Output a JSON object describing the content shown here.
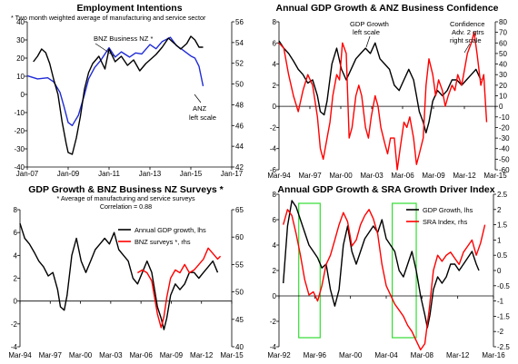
{
  "colors": {
    "black": "#000000",
    "red": "#ff0000",
    "blue": "#1f2bd6",
    "green": "#33dd33"
  },
  "chart_data": [
    {
      "type": "line",
      "title": "Employment Intentions",
      "notes": [
        "* Two month weighted average of manufacturing and service sector"
      ],
      "x_ticks": [
        "Jan-07",
        "Jan-09",
        "Jan-11",
        "Jan-13",
        "Jan-15",
        "Jan-17"
      ],
      "x_range": [
        2007,
        2017
      ],
      "ylim_left": [
        -40,
        40
      ],
      "ylim_right": [
        42,
        56
      ],
      "left_ticks": [
        "-40",
        "-30",
        "-20",
        "-10",
        "0",
        "10",
        "20",
        "30",
        "40"
      ],
      "right_ticks": [
        "42",
        "44",
        "46",
        "48",
        "50",
        "52",
        "54",
        "56"
      ],
      "annotations": [
        "BNZ Business NZ *",
        "ANZ",
        "left scale"
      ],
      "series": [
        {
          "name": "BNZ Business NZ *",
          "color": "blue",
          "axis": "right",
          "x": [
            2007.0,
            2007.5,
            2008.0,
            2008.3,
            2008.6,
            2008.8,
            2009.0,
            2009.2,
            2009.5,
            2009.8,
            2010.0,
            2010.3,
            2010.6,
            2011.0,
            2011.3,
            2011.6,
            2012.0,
            2012.3,
            2012.6,
            2013.0,
            2013.3,
            2013.6,
            2014.0,
            2014.3,
            2014.6,
            2015.0,
            2015.2,
            2015.4,
            2015.6
          ],
          "y": [
            50.8,
            50.5,
            50.6,
            50.2,
            49.2,
            47.8,
            46.3,
            46.0,
            47.0,
            49.0,
            50.5,
            51.6,
            52.3,
            53.5,
            52.6,
            53.1,
            52.6,
            53.0,
            52.9,
            53.8,
            53.4,
            54.1,
            54.5,
            53.7,
            53.3,
            52.7,
            52.5,
            51.7,
            49.8
          ]
        },
        {
          "name": "ANZ",
          "color": "black",
          "axis": "left",
          "x": [
            2007.3,
            2007.5,
            2007.7,
            2007.9,
            2008.1,
            2008.3,
            2008.5,
            2008.7,
            2008.9,
            2009.0,
            2009.2,
            2009.4,
            2009.6,
            2009.8,
            2010.0,
            2010.2,
            2010.5,
            2010.8,
            2011.0,
            2011.3,
            2011.6,
            2011.9,
            2012.2,
            2012.5,
            2012.8,
            2013.0,
            2013.3,
            2013.6,
            2013.9,
            2014.2,
            2014.5,
            2014.8,
            2015.0,
            2015.2,
            2015.4,
            2015.6
          ],
          "y": [
            18,
            21,
            25,
            23,
            17,
            8,
            0,
            -15,
            -27,
            -32,
            -33,
            -24,
            -12,
            3,
            12,
            17,
            21,
            14,
            25,
            18,
            21,
            16,
            19,
            13,
            17,
            19,
            22,
            26,
            31,
            28,
            25,
            28,
            32,
            30,
            26,
            26
          ]
        }
      ]
    },
    {
      "type": "line",
      "title": "Annual GDP Growth & ANZ Business Confidence",
      "x_ticks": [
        "Mar-94",
        "Mar-97",
        "Mar-00",
        "Mar-03",
        "Mar-06",
        "Mar-09",
        "Mar-12",
        "Mar-15"
      ],
      "x_range": [
        1994,
        2016.5
      ],
      "ylim_left": [
        -6,
        8
      ],
      "ylim_right": [
        -60,
        80
      ],
      "left_ticks": [
        "-6",
        "-4",
        "-2",
        "0",
        "2",
        "4",
        "6",
        "8"
      ],
      "right_ticks": [
        "-60",
        "-50",
        "-40",
        "-30",
        "-20",
        "-10",
        "0",
        "10",
        "20",
        "30",
        "40",
        "50",
        "60",
        "70",
        "80"
      ],
      "annotations": [
        "GDP Growth",
        "left scale",
        "Confidence",
        "Adv. 2 qtrs",
        "right scale"
      ],
      "series": [
        {
          "name": "GDP Growth",
          "color": "black",
          "axis": "left",
          "x": [
            1994.0,
            1994.5,
            1995.0,
            1995.5,
            1996.0,
            1996.5,
            1997.0,
            1997.5,
            1998.0,
            1998.3,
            1998.7,
            1999.0,
            1999.5,
            2000.0,
            2000.5,
            2001.0,
            2001.5,
            2002.0,
            2002.5,
            2003.0,
            2003.5,
            2004.0,
            2004.5,
            2005.0,
            2005.5,
            2006.0,
            2006.5,
            2007.0,
            2007.5,
            2008.0,
            2008.3,
            2008.6,
            2009.0,
            2009.3,
            2009.6,
            2010.0,
            2010.5,
            2011.0,
            2011.5,
            2012.0,
            2012.5,
            2013.0,
            2013.5,
            2014.0,
            2014.5,
            2015.0
          ],
          "y": [
            6.2,
            5.5,
            5.0,
            4.3,
            3.5,
            3.0,
            2.2,
            2.5,
            1.0,
            -0.5,
            -0.8,
            0.5,
            4.0,
            5.5,
            3.5,
            2.5,
            3.5,
            4.5,
            5.0,
            5.5,
            5.0,
            6.0,
            4.5,
            4.0,
            3.5,
            2.0,
            1.5,
            2.5,
            3.5,
            2.5,
            1.0,
            -0.5,
            -1.5,
            -2.5,
            -1.5,
            0.5,
            1.5,
            1.0,
            1.5,
            2.5,
            2.5,
            2.0,
            2.5,
            3.0,
            3.5,
            2.5
          ]
        },
        {
          "name": "Confidence Adv. 2 qtrs",
          "color": "red",
          "axis": "right",
          "x": [
            1994.0,
            1994.5,
            1995.0,
            1995.5,
            1996.0,
            1996.5,
            1997.0,
            1997.5,
            1998.0,
            1998.3,
            1998.6,
            1999.0,
            1999.3,
            1999.6,
            2000.0,
            2000.3,
            2000.6,
            2001.0,
            2001.3,
            2001.6,
            2002.0,
            2002.3,
            2002.6,
            2003.0,
            2003.3,
            2003.6,
            2004.0,
            2004.3,
            2004.6,
            2005.0,
            2005.3,
            2005.6,
            2006.0,
            2006.3,
            2006.6,
            2007.0,
            2007.3,
            2007.6,
            2008.0,
            2008.3,
            2008.6,
            2009.0,
            2009.3,
            2009.6,
            2010.0,
            2010.3,
            2010.6,
            2011.0,
            2011.3,
            2011.6,
            2012.0,
            2012.3,
            2012.6,
            2013.0,
            2013.3,
            2013.6,
            2014.0,
            2014.3,
            2014.6,
            2015.0,
            2015.3,
            2015.6
          ],
          "y": [
            60,
            55,
            30,
            10,
            -5,
            15,
            30,
            20,
            -10,
            -40,
            -50,
            -30,
            -15,
            10,
            30,
            25,
            60,
            50,
            -30,
            -20,
            10,
            20,
            10,
            -20,
            -30,
            -10,
            10,
            0,
            -20,
            -35,
            -45,
            -30,
            -30,
            -60,
            -40,
            -15,
            -20,
            -10,
            -30,
            -55,
            -45,
            -30,
            20,
            45,
            30,
            10,
            25,
            15,
            0,
            10,
            20,
            15,
            30,
            20,
            35,
            50,
            60,
            70,
            50,
            20,
            30,
            -15
          ]
        }
      ]
    },
    {
      "type": "line",
      "title": "GDP Growth & BNZ Business NZ Surveys *",
      "notes": [
        "* Average of manufacturing and service surveys",
        "Correlation = 0.88"
      ],
      "x_ticks": [
        "Mar-94",
        "Mar-97",
        "Mar-00",
        "Mar-03",
        "Mar-06",
        "Mar-09",
        "Mar-12",
        "Mar-15"
      ],
      "x_range": [
        1994,
        2016.5
      ],
      "ylim_left": [
        -4,
        8
      ],
      "ylim_right": [
        40,
        65
      ],
      "left_ticks": [
        "-4",
        "-2",
        "0",
        "2",
        "4",
        "6",
        "8"
      ],
      "right_ticks": [
        "40",
        "45",
        "50",
        "55",
        "60",
        "65"
      ],
      "legend": [
        "Annual GDP growth, lhs",
        "BNZ surveys *, rhs"
      ],
      "series": [
        {
          "name": "Annual GDP growth, lhs",
          "color": "black",
          "axis": "left",
          "x": [
            1994.0,
            1994.5,
            1995.0,
            1995.5,
            1996.0,
            1996.5,
            1997.0,
            1997.5,
            1998.0,
            1998.3,
            1998.7,
            1999.0,
            1999.5,
            2000.0,
            2000.5,
            2001.0,
            2001.5,
            2002.0,
            2002.5,
            2003.0,
            2003.5,
            2004.0,
            2004.5,
            2005.0,
            2005.5,
            2006.0,
            2006.5,
            2007.0,
            2007.5,
            2008.0,
            2008.3,
            2008.6,
            2009.0,
            2009.3,
            2009.6,
            2010.0,
            2010.5,
            2011.0,
            2011.5,
            2012.0,
            2012.5,
            2013.0,
            2013.5,
            2014.0,
            2014.5,
            2015.0
          ],
          "y": [
            6.8,
            5.5,
            5.0,
            4.3,
            3.5,
            3.0,
            2.2,
            2.5,
            1.0,
            -0.5,
            -0.8,
            0.5,
            4.0,
            5.5,
            3.5,
            2.5,
            3.5,
            4.5,
            5.0,
            5.5,
            5.0,
            6.0,
            4.5,
            4.0,
            3.5,
            2.0,
            1.5,
            2.5,
            3.5,
            2.5,
            1.0,
            -0.5,
            -1.5,
            -2.5,
            -1.5,
            0.5,
            1.5,
            1.0,
            1.5,
            2.5,
            2.5,
            2.0,
            2.5,
            3.0,
            3.5,
            2.5
          ]
        },
        {
          "name": "BNZ surveys *, rhs",
          "color": "red",
          "axis": "right",
          "x": [
            2006.5,
            2007.0,
            2007.5,
            2008.0,
            2008.3,
            2008.6,
            2009.0,
            2009.3,
            2009.6,
            2010.0,
            2010.5,
            2011.0,
            2011.5,
            2012.0,
            2012.5,
            2013.0,
            2013.5,
            2014.0,
            2014.5,
            2015.0,
            2015.3
          ],
          "y": [
            53.5,
            54.0,
            53.5,
            52.0,
            49.0,
            46.0,
            43.5,
            45.5,
            49.0,
            52.5,
            54.0,
            53.5,
            55.0,
            53.5,
            54.0,
            55.0,
            56.0,
            58.0,
            57.0,
            56.0,
            56.5
          ]
        }
      ]
    },
    {
      "type": "line",
      "title": "Annual GDP Growth & SRA Growth Driver Index",
      "x_ticks": [
        "Mar-92",
        "Mar-96",
        "Mar-00",
        "Mar-04",
        "Mar-08",
        "Mar-12",
        "Mar-16"
      ],
      "x_range": [
        1992,
        2017
      ],
      "ylim_left": [
        -4,
        8
      ],
      "ylim_right": [
        -2.5,
        2.5
      ],
      "left_ticks": [
        "-4",
        "-2",
        "0",
        "2",
        "4",
        "6",
        "8"
      ],
      "right_ticks": [
        "-2.5",
        "-2",
        "-1.5",
        "-1",
        "-0.5",
        "0",
        "0.5",
        "1",
        "1.5",
        "2",
        "2.5"
      ],
      "legend": [
        "GDP Growth, lhs",
        "SRA Index, rhs"
      ],
      "highlight_boxes": [
        {
          "x": [
            1994.3,
            1996.8
          ]
        },
        {
          "x": [
            2005.2,
            2008.0
          ]
        }
      ],
      "series": [
        {
          "name": "GDP Growth, lhs",
          "color": "black",
          "axis": "left",
          "x": [
            1992.5,
            1993.0,
            1993.5,
            1994.0,
            1994.5,
            1995.0,
            1995.5,
            1996.0,
            1996.5,
            1997.0,
            1997.5,
            1998.0,
            1998.5,
            1999.0,
            1999.5,
            2000.0,
            2000.5,
            2001.0,
            2001.5,
            2002.0,
            2002.5,
            2003.0,
            2003.5,
            2004.0,
            2004.5,
            2005.0,
            2005.5,
            2006.0,
            2006.5,
            2007.0,
            2007.5,
            2008.0,
            2008.5,
            2009.0,
            2009.3,
            2009.6,
            2010.0,
            2010.5,
            2011.0,
            2011.5,
            2012.0,
            2012.5,
            2013.0,
            2013.5,
            2014.0,
            2014.5,
            2015.0,
            2015.3
          ],
          "y": [
            1.0,
            5.5,
            7.5,
            7.0,
            6.0,
            5.0,
            4.0,
            3.5,
            3.0,
            2.2,
            2.5,
            0.5,
            -0.8,
            0.5,
            4.0,
            5.5,
            3.5,
            2.5,
            3.5,
            4.5,
            5.0,
            5.5,
            5.0,
            6.0,
            4.5,
            4.0,
            3.5,
            2.0,
            1.5,
            2.5,
            3.5,
            2.0,
            0.0,
            -1.5,
            -2.5,
            -1.5,
            0.5,
            1.5,
            1.0,
            1.5,
            2.5,
            2.5,
            2.0,
            2.5,
            3.0,
            3.5,
            2.5,
            2.0
          ]
        },
        {
          "name": "SRA Index, rhs",
          "color": "red",
          "axis": "right",
          "x": [
            1992.5,
            1993.0,
            1993.5,
            1994.0,
            1994.5,
            1995.0,
            1995.5,
            1996.0,
            1996.5,
            1997.0,
            1997.5,
            1998.0,
            1998.5,
            1999.0,
            1999.5,
            2000.0,
            2000.5,
            2001.0,
            2001.5,
            2002.0,
            2002.5,
            2003.0,
            2003.5,
            2004.0,
            2004.5,
            2005.0,
            2005.5,
            2006.0,
            2006.5,
            2007.0,
            2007.5,
            2008.0,
            2008.5,
            2009.0,
            2009.5,
            2010.0,
            2010.5,
            2011.0,
            2011.5,
            2012.0,
            2012.5,
            2013.0,
            2013.5,
            2014.0,
            2014.5,
            2015.0,
            2015.5,
            2016.0
          ],
          "y": [
            1.5,
            2.0,
            1.8,
            1.2,
            0.5,
            -0.3,
            -0.8,
            -0.7,
            -1.0,
            -0.5,
            0.2,
            0.5,
            1.0,
            1.5,
            1.9,
            1.6,
            0.8,
            1.0,
            1.5,
            1.8,
            2.0,
            1.7,
            1.2,
            0.2,
            -0.5,
            -0.8,
            -1.1,
            -1.3,
            -1.5,
            -1.8,
            -2.0,
            -2.3,
            -2.6,
            -2.4,
            -1.3,
            0.0,
            0.5,
            0.3,
            0.5,
            0.6,
            0.4,
            0.2,
            0.6,
            0.8,
            1.0,
            0.5,
            0.9,
            1.5
          ]
        }
      ]
    }
  ]
}
